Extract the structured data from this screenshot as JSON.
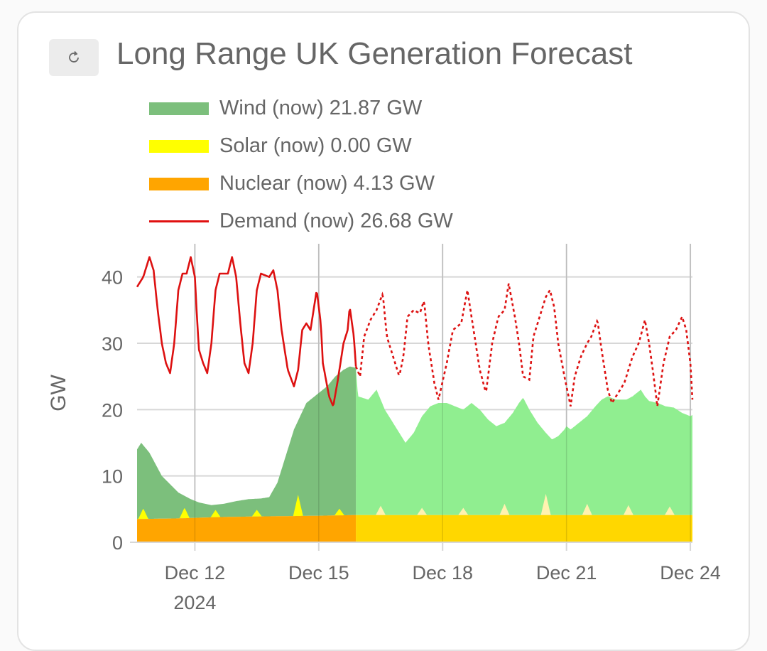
{
  "card": {
    "title": "Long Range UK Generation Forecast",
    "refresh_icon": "refresh-icon"
  },
  "legend": [
    {
      "label": "Wind (now) 21.87 GW",
      "color": "#7cbf7c",
      "kind": "area"
    },
    {
      "label": "Solar (now) 0.00 GW",
      "color": "#ffff00",
      "kind": "area"
    },
    {
      "label": "Nuclear (now) 4.13 GW",
      "color": "#ffa500",
      "kind": "area"
    },
    {
      "label": "Demand (now) 26.68 GW",
      "color": "#e01010",
      "kind": "line"
    }
  ],
  "colors": {
    "wind_past": "#7cbf7c",
    "wind_forecast": "#90ee90",
    "solar_past": "#ffff00",
    "solar_forecast": "#fff2b0",
    "nuclear_past": "#ffa500",
    "nuclear_forecast": "#ffd700",
    "demand": "#dd1111",
    "grid": "#d7d7d7"
  },
  "chart_data": {
    "type": "area",
    "ylabel": "GW",
    "ylim": [
      0,
      45
    ],
    "yticks": [
      "0",
      "10",
      "20",
      "30",
      "40"
    ],
    "xlim": [
      10.6,
      24.05
    ],
    "xticks": [
      {
        "x": 12,
        "label": "Dec 12",
        "sublabel": "2024"
      },
      {
        "x": 15,
        "label": "Dec 15",
        "sublabel": ""
      },
      {
        "x": 18,
        "label": "Dec 18",
        "sublabel": ""
      },
      {
        "x": 21,
        "label": "Dec 21",
        "sublabel": ""
      },
      {
        "x": 24,
        "label": "Dec 24",
        "sublabel": ""
      }
    ],
    "grid": true,
    "now_x": 15.9,
    "series": [
      {
        "name": "Nuclear",
        "stack": "base",
        "points": [
          [
            10.6,
            3.5
          ],
          [
            11.6,
            3.6
          ],
          [
            12.6,
            3.8
          ],
          [
            13.6,
            3.9
          ],
          [
            15.0,
            4.0
          ],
          [
            15.9,
            4.1
          ],
          [
            24.05,
            4.1
          ]
        ]
      },
      {
        "name": "Solar",
        "stack": "on-nuclear",
        "peaks": [
          [
            10.75,
            1.6
          ],
          [
            11.75,
            1.6
          ],
          [
            12.5,
            1.1
          ],
          [
            13.5,
            1.0
          ],
          [
            14.5,
            3.2
          ],
          [
            15.5,
            1.0
          ],
          [
            16.5,
            1.4
          ],
          [
            17.5,
            1.1
          ],
          [
            18.5,
            1.1
          ],
          [
            19.5,
            1.7
          ],
          [
            20.5,
            3.2
          ],
          [
            21.5,
            1.7
          ],
          [
            22.5,
            1.5
          ],
          [
            23.5,
            1.3
          ]
        ]
      },
      {
        "name": "Wind",
        "stack": "top",
        "points": [
          [
            10.6,
            14
          ],
          [
            10.7,
            15
          ],
          [
            10.9,
            13.5
          ],
          [
            11.2,
            10
          ],
          [
            11.6,
            7.5
          ],
          [
            11.9,
            6.5
          ],
          [
            12.1,
            6
          ],
          [
            12.4,
            5.6
          ],
          [
            12.7,
            5.8
          ],
          [
            13.0,
            6.2
          ],
          [
            13.3,
            6.5
          ],
          [
            13.6,
            6.6
          ],
          [
            13.8,
            6.8
          ],
          [
            14.0,
            9
          ],
          [
            14.2,
            13
          ],
          [
            14.4,
            17
          ],
          [
            14.55,
            19
          ],
          [
            14.7,
            21
          ],
          [
            14.8,
            21.5
          ],
          [
            15.0,
            22.5
          ],
          [
            15.2,
            23.5
          ],
          [
            15.4,
            25
          ],
          [
            15.6,
            26
          ],
          [
            15.75,
            26.5
          ],
          [
            15.9,
            26.3
          ],
          [
            15.95,
            22
          ],
          [
            16.2,
            21.5
          ],
          [
            16.4,
            23
          ],
          [
            16.6,
            20
          ],
          [
            16.8,
            18
          ],
          [
            17.0,
            16
          ],
          [
            17.1,
            15
          ],
          [
            17.3,
            16.5
          ],
          [
            17.5,
            19
          ],
          [
            17.7,
            20.5
          ],
          [
            17.9,
            21
          ],
          [
            18.1,
            21
          ],
          [
            18.3,
            20.5
          ],
          [
            18.5,
            20
          ],
          [
            18.7,
            21
          ],
          [
            18.9,
            20
          ],
          [
            19.1,
            18.5
          ],
          [
            19.3,
            17.5
          ],
          [
            19.5,
            18
          ],
          [
            19.7,
            19.5
          ],
          [
            19.85,
            21
          ],
          [
            19.95,
            21.8
          ],
          [
            20.1,
            20
          ],
          [
            20.3,
            18
          ],
          [
            20.5,
            16.5
          ],
          [
            20.65,
            15.5
          ],
          [
            20.8,
            16
          ],
          [
            20.95,
            17
          ],
          [
            21.0,
            17.5
          ],
          [
            21.1,
            17
          ],
          [
            21.3,
            18
          ],
          [
            21.5,
            19
          ],
          [
            21.7,
            20.5
          ],
          [
            21.85,
            21.5
          ],
          [
            22.0,
            22
          ],
          [
            22.2,
            21.5
          ],
          [
            22.45,
            21.5
          ],
          [
            22.6,
            22
          ],
          [
            22.8,
            23
          ],
          [
            22.9,
            22
          ],
          [
            23.0,
            21.3
          ],
          [
            23.2,
            21
          ],
          [
            23.4,
            20.5
          ],
          [
            23.6,
            20.3
          ],
          [
            23.8,
            19.5
          ],
          [
            24.0,
            19
          ],
          [
            24.05,
            19.2
          ]
        ]
      },
      {
        "name": "Demand",
        "stack": "none",
        "points": [
          [
            10.6,
            38.5
          ],
          [
            10.75,
            40
          ],
          [
            10.9,
            43
          ],
          [
            11.0,
            41
          ],
          [
            11.1,
            35
          ],
          [
            11.2,
            30
          ],
          [
            11.3,
            27
          ],
          [
            11.4,
            25.5
          ],
          [
            11.5,
            30
          ],
          [
            11.6,
            38
          ],
          [
            11.7,
            40.5
          ],
          [
            11.8,
            40.5
          ],
          [
            11.9,
            43
          ],
          [
            12.0,
            40
          ],
          [
            12.05,
            34
          ],
          [
            12.1,
            29
          ],
          [
            12.2,
            27
          ],
          [
            12.3,
            25.5
          ],
          [
            12.4,
            30
          ],
          [
            12.5,
            38
          ],
          [
            12.6,
            40.5
          ],
          [
            12.8,
            40.5
          ],
          [
            12.9,
            43
          ],
          [
            13.0,
            40
          ],
          [
            13.1,
            33
          ],
          [
            13.2,
            27
          ],
          [
            13.3,
            25.5
          ],
          [
            13.4,
            30
          ],
          [
            13.5,
            38
          ],
          [
            13.6,
            40.5
          ],
          [
            13.8,
            40
          ],
          [
            13.9,
            41
          ],
          [
            14.0,
            38
          ],
          [
            14.1,
            32
          ],
          [
            14.25,
            26
          ],
          [
            14.4,
            23.5
          ],
          [
            14.5,
            26
          ],
          [
            14.6,
            32
          ],
          [
            14.7,
            33
          ],
          [
            14.8,
            32
          ],
          [
            14.95,
            38
          ],
          [
            15.05,
            33
          ],
          [
            15.1,
            27
          ],
          [
            15.25,
            22
          ],
          [
            15.35,
            20.5
          ],
          [
            15.45,
            24
          ],
          [
            15.55,
            28
          ],
          [
            15.6,
            30
          ],
          [
            15.7,
            32
          ],
          [
            15.75,
            35.5
          ],
          [
            15.85,
            31
          ],
          [
            15.9,
            26.5
          ],
          [
            16.0,
            25
          ],
          [
            16.1,
            31
          ],
          [
            16.25,
            33.5
          ],
          [
            16.4,
            35
          ],
          [
            16.55,
            37.5
          ],
          [
            16.65,
            31
          ],
          [
            16.8,
            28
          ],
          [
            16.95,
            25
          ],
          [
            17.05,
            28
          ],
          [
            17.15,
            34
          ],
          [
            17.3,
            35
          ],
          [
            17.45,
            34.5
          ],
          [
            17.55,
            36.5
          ],
          [
            17.65,
            30
          ],
          [
            17.8,
            24
          ],
          [
            17.9,
            21.5
          ],
          [
            18.1,
            27
          ],
          [
            18.25,
            32
          ],
          [
            18.45,
            33
          ],
          [
            18.6,
            38
          ],
          [
            18.75,
            32
          ],
          [
            18.9,
            26
          ],
          [
            19.05,
            22.5
          ],
          [
            19.2,
            30
          ],
          [
            19.35,
            34
          ],
          [
            19.5,
            35
          ],
          [
            19.6,
            39
          ],
          [
            19.75,
            34
          ],
          [
            19.85,
            30
          ],
          [
            19.95,
            25
          ],
          [
            20.1,
            24.5
          ],
          [
            20.2,
            31
          ],
          [
            20.35,
            34
          ],
          [
            20.5,
            37
          ],
          [
            20.6,
            38
          ],
          [
            20.7,
            35.5
          ],
          [
            20.8,
            30
          ],
          [
            20.95,
            25
          ],
          [
            21.1,
            20.5
          ],
          [
            21.2,
            25
          ],
          [
            21.35,
            28
          ],
          [
            21.5,
            30
          ],
          [
            21.6,
            31
          ],
          [
            21.75,
            33.5
          ],
          [
            21.85,
            29
          ],
          [
            22.0,
            23
          ],
          [
            22.1,
            21
          ],
          [
            22.2,
            22
          ],
          [
            22.4,
            24
          ],
          [
            22.6,
            28
          ],
          [
            22.75,
            30
          ],
          [
            22.9,
            33.5
          ],
          [
            23.0,
            30
          ],
          [
            23.1,
            25.5
          ],
          [
            23.2,
            20.5
          ],
          [
            23.35,
            27
          ],
          [
            23.5,
            31
          ],
          [
            23.65,
            32
          ],
          [
            23.8,
            34
          ],
          [
            23.9,
            32
          ],
          [
            24.0,
            27
          ],
          [
            24.05,
            21.5
          ]
        ]
      }
    ]
  }
}
